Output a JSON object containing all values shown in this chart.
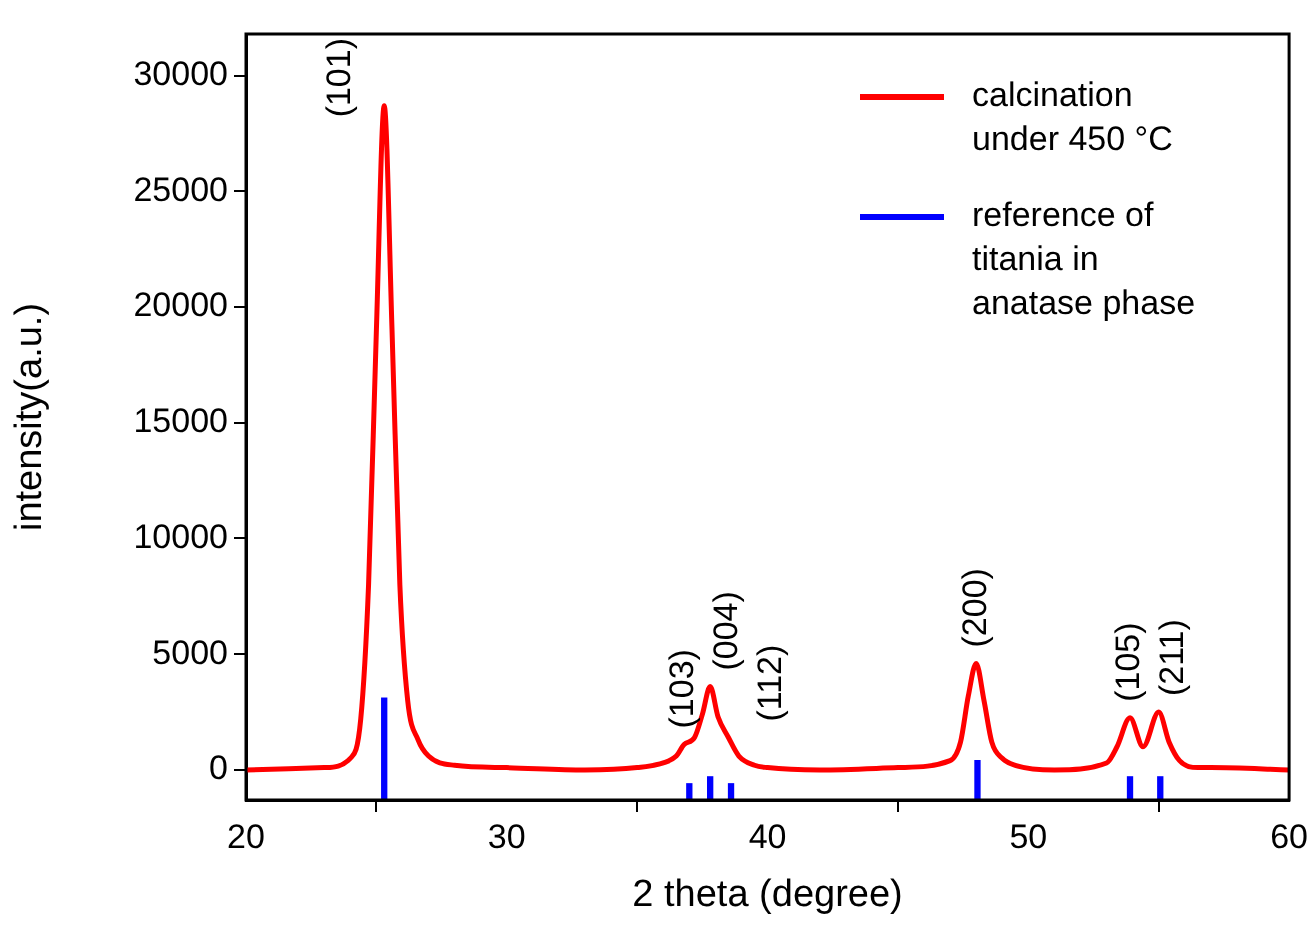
{
  "chart_data": {
    "type": "line",
    "xlabel": "2 theta (degree)",
    "ylabel": "intensity(a.u.)",
    "xlim": [
      20,
      60
    ],
    "ylim": [
      -1300,
      31800
    ],
    "xticks": [
      20,
      30,
      40,
      50,
      60
    ],
    "yticks": [
      0,
      5000,
      10000,
      15000,
      20000,
      25000,
      30000
    ],
    "grid": false,
    "legend": "top right",
    "marker": "none",
    "line_style": "solid",
    "series": [
      {
        "name": "calcination under 450 °C",
        "color": "#ff0000",
        "x": [
          20,
          23,
          24,
          24.4,
          24.7,
          25.0,
          25.3,
          25.6,
          25.9,
          26.2,
          26.6,
          27,
          28,
          30,
          33,
          35,
          36,
          36.5,
          36.8,
          37.2,
          37.5,
          37.8,
          38.1,
          38.5,
          38.9,
          39.5,
          40,
          42,
          45,
          47,
          47.4,
          47.7,
          48.0,
          48.3,
          48.6,
          49,
          49.5,
          51,
          53,
          53.4,
          53.9,
          54.4,
          55.0,
          55.4,
          55.8,
          56.5,
          57,
          60
        ],
        "values": [
          0,
          100,
          500,
          2200,
          8000,
          19000,
          28700,
          19000,
          8000,
          3000,
          1300,
          600,
          200,
          100,
          0,
          100,
          300,
          600,
          1100,
          1400,
          2400,
          3600,
          2300,
          1400,
          600,
          200,
          100,
          0,
          100,
          400,
          1200,
          3200,
          4600,
          3000,
          1200,
          500,
          200,
          0,
          300,
          1000,
          2250,
          1000,
          2500,
          1200,
          400,
          100,
          100,
          0
        ]
      },
      {
        "name": "reference of titania in anatase phase",
        "color": "#0000ff",
        "type": "bar",
        "x": [
          25.3,
          37.0,
          37.8,
          38.6,
          48.05,
          53.9,
          55.06
        ],
        "base": [
          -1300,
          -1300,
          -1300,
          -1300,
          -1300,
          -1300,
          -1300
        ],
        "values": [
          4400,
          700,
          1000,
          700,
          1700,
          1000,
          1000
        ]
      }
    ],
    "annotations": [
      {
        "text": "(101)",
        "x": 25.3,
        "y": 28700
      },
      {
        "text": "(103)",
        "x": 36.8,
        "y": 1100
      },
      {
        "text": "(004)",
        "x": 37.8,
        "y": 3600
      },
      {
        "text": "(112)",
        "x": 38.5,
        "y": 1400
      },
      {
        "text": "(200)",
        "x": 48.0,
        "y": 4600
      },
      {
        "text": "(105)",
        "x": 53.9,
        "y": 2250
      },
      {
        "text": "(211)",
        "x": 55.0,
        "y": 2500
      }
    ]
  }
}
